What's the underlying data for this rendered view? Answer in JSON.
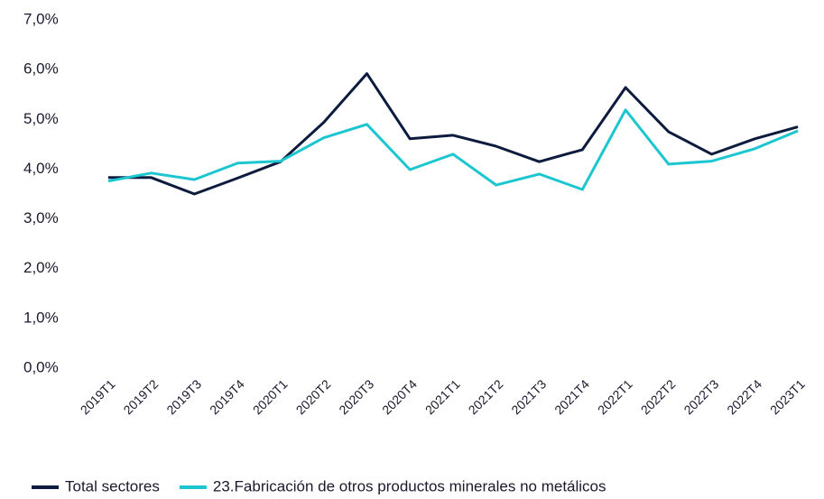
{
  "chart_data": {
    "type": "line",
    "categories": [
      "2019T1",
      "2019T2",
      "2019T3",
      "2019T4",
      "2020T1",
      "2020T2",
      "2020T3",
      "2020T4",
      "2021T1",
      "2021T2",
      "2021T3",
      "2021T4",
      "2022T1",
      "2022T2",
      "2022T3",
      "2022T4",
      "2023T1"
    ],
    "series": [
      {
        "name": "Total sectores",
        "color": "#0d1b3e",
        "values": [
          3.83,
          3.83,
          3.5,
          3.82,
          4.15,
          4.94,
          5.92,
          4.61,
          4.68,
          4.46,
          4.15,
          4.39,
          5.64,
          4.75,
          4.3,
          4.61,
          4.85
        ]
      },
      {
        "name": "23.Fabricación de otros productos minerales no metálicos",
        "color": "#1cc6d0",
        "values": [
          3.76,
          3.92,
          3.79,
          4.12,
          4.16,
          4.63,
          4.9,
          3.99,
          4.3,
          3.68,
          3.9,
          3.59,
          5.19,
          4.1,
          4.16,
          4.41,
          4.77
        ]
      }
    ],
    "ylim": [
      0,
      7
    ],
    "yticks": [
      {
        "value": 0,
        "label": "0,0%"
      },
      {
        "value": 1,
        "label": "1,0%"
      },
      {
        "value": 2,
        "label": "2,0%"
      },
      {
        "value": 3,
        "label": "3,0%"
      },
      {
        "value": 4,
        "label": "4,0%"
      },
      {
        "value": 5,
        "label": "5,0%"
      },
      {
        "value": 6,
        "label": "6,0%"
      },
      {
        "value": 7,
        "label": "7,0%"
      }
    ],
    "grid": false
  }
}
